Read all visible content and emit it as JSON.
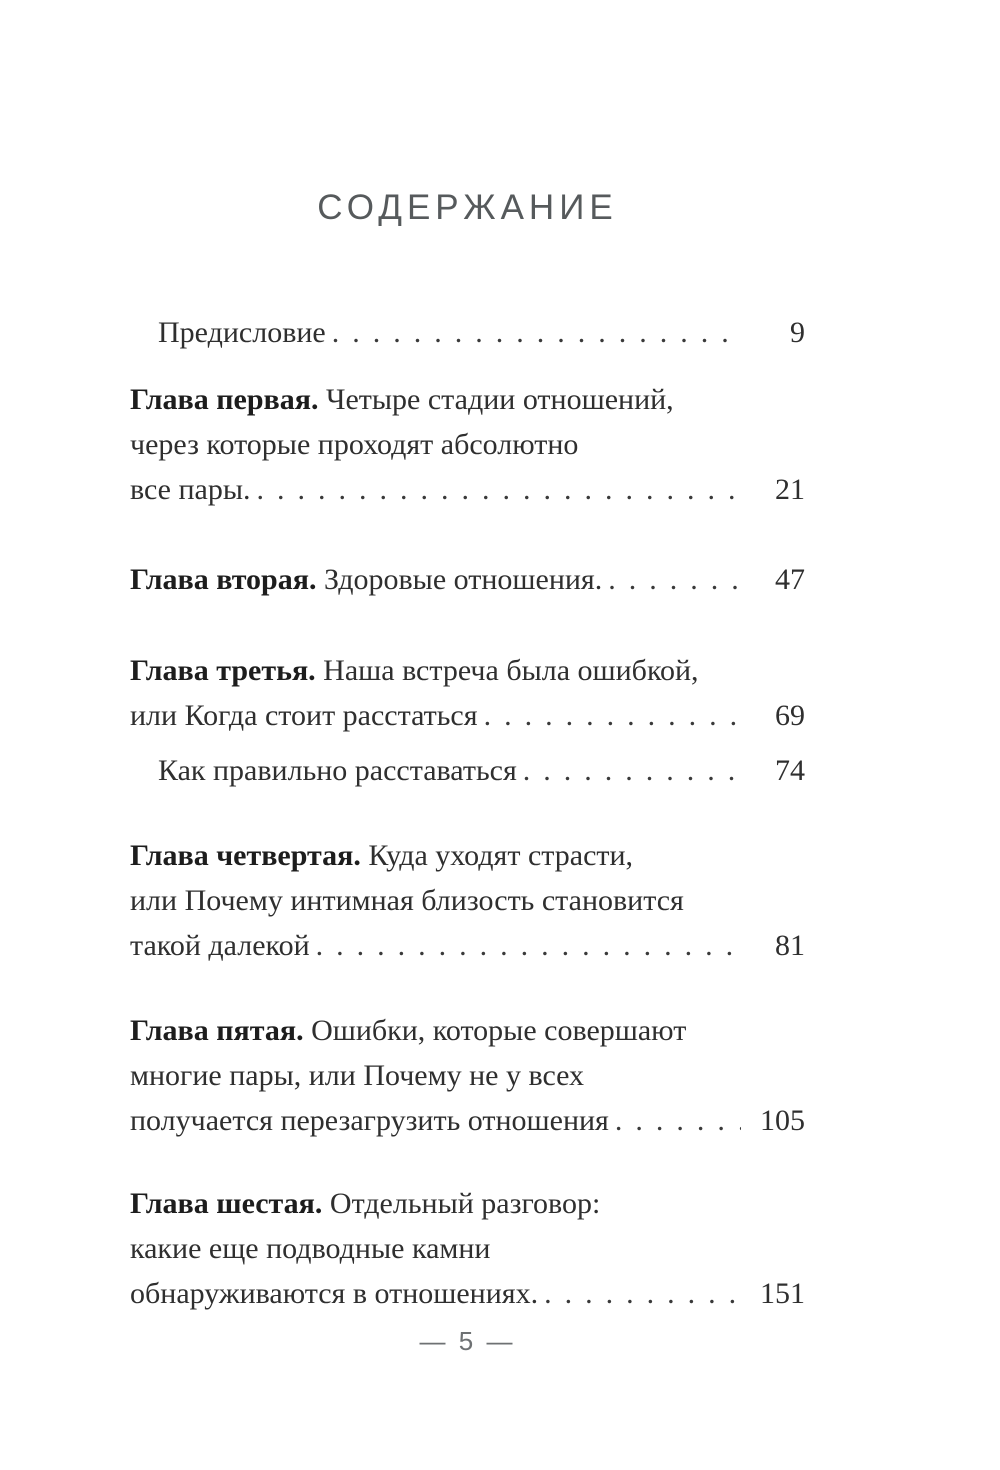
{
  "document": {
    "title": "СОДЕРЖАНИЕ",
    "footer_text": "— 5 —"
  },
  "toc": {
    "entries": [
      {
        "indent": true,
        "lines": [
          {
            "text": "Предисловие",
            "page": "9"
          }
        ]
      },
      {
        "indent": false,
        "lines": [
          {
            "bold": "Глава первая.",
            "text": " Четыре стадии отношений,"
          },
          {
            "text": "через которые проходят абсолютно"
          },
          {
            "text": "все пары.",
            "page": "21"
          }
        ]
      },
      {
        "indent": false,
        "lines": [
          {
            "bold": "Глава вторая.",
            "text": " Здоровые отношения.",
            "page": "47"
          }
        ]
      },
      {
        "indent": false,
        "lines": [
          {
            "bold": "Глава третья.",
            "text": " Наша встреча была ошибкой,"
          },
          {
            "text": "или Когда стоит расстаться",
            "page": "69"
          }
        ]
      },
      {
        "indent": true,
        "lines": [
          {
            "text": "Как правильно расставаться",
            "page": "74"
          }
        ]
      },
      {
        "indent": false,
        "lines": [
          {
            "bold": "Глава четвертая.",
            "text": " Куда уходят страсти,"
          },
          {
            "text": "или Почему интимная близость становится"
          },
          {
            "text": "такой далекой",
            "page": "81"
          }
        ]
      },
      {
        "indent": false,
        "lines": [
          {
            "bold": "Глава пятая.",
            "text": " Ошибки, которые совершают"
          },
          {
            "text": "многие пары, или Почему не у всех"
          },
          {
            "text": "получается перезагрузить отношения",
            "page": "105"
          }
        ]
      },
      {
        "indent": false,
        "lines": [
          {
            "bold": "Глава шестая.",
            "text": " Отдельный разговор:"
          },
          {
            "text": "какие еще подводные камни"
          },
          {
            "text": "обнаруживаются в отношениях.",
            "page": "151"
          }
        ]
      }
    ]
  }
}
